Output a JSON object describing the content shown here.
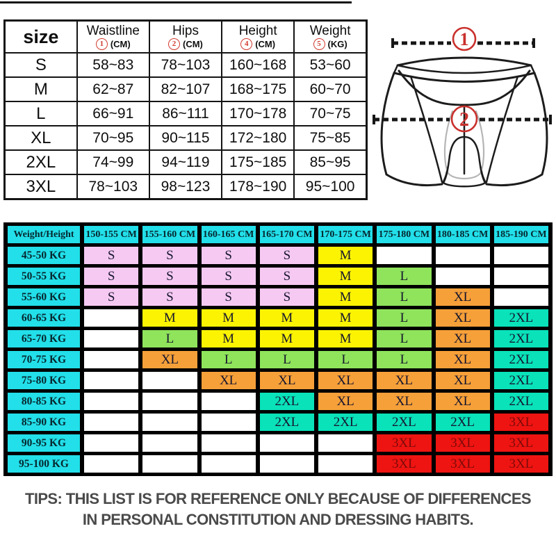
{
  "colors": {
    "accent_red": "#c9302c",
    "header_cyan": "#22dfe9",
    "blank_cell": "#ffffff",
    "default_cell_text": "#15152e"
  },
  "size_table": {
    "title_header": "size",
    "columns": [
      {
        "label": "Waistline",
        "marker": "1",
        "unit": "(CM)"
      },
      {
        "label": "Hips",
        "marker": "2",
        "unit": "(CM)"
      },
      {
        "label": "Height",
        "marker": "4",
        "unit": "(CM)"
      },
      {
        "label": "Weight",
        "marker": "5",
        "unit": "(KG)"
      }
    ],
    "rows": [
      {
        "size": "S",
        "values": [
          "58~83",
          "78~103",
          "160~168",
          "53~60"
        ]
      },
      {
        "size": "M",
        "values": [
          "62~87",
          "82~107",
          "168~175",
          "60~70"
        ]
      },
      {
        "size": "L",
        "values": [
          "66~91",
          "86~111",
          "170~178",
          "70~75"
        ]
      },
      {
        "size": "XL",
        "values": [
          "70~95",
          "90~115",
          "172~180",
          "75~85"
        ]
      },
      {
        "size": "2XL",
        "values": [
          "74~99",
          "94~119",
          "175~185",
          "85~95"
        ]
      },
      {
        "size": "3XL",
        "values": [
          "78~103",
          "98~123",
          "178~190",
          "95~100"
        ]
      }
    ]
  },
  "diagram": {
    "waist_marker": "1",
    "hip_marker": "2"
  },
  "matrix_table": {
    "corner_header": "Weight/Height",
    "height_headers": [
      "150-155 CM",
      "155-160 CM",
      "160-165 CM",
      "165-170 CM",
      "170-175 CM",
      "175-180 CM",
      "180-185 CM",
      "185-190 CM"
    ],
    "rows": [
      {
        "label": "45-50 KG",
        "cells": [
          "S",
          "S",
          "S",
          "S",
          "M",
          "",
          "",
          ""
        ]
      },
      {
        "label": "50-55 KG",
        "cells": [
          "S",
          "S",
          "S",
          "S",
          "M",
          "L",
          "",
          ""
        ]
      },
      {
        "label": "55-60 KG",
        "cells": [
          "S",
          "S",
          "S",
          "S",
          "M",
          "L",
          "XL",
          ""
        ]
      },
      {
        "label": "60-65 KG",
        "cells": [
          "",
          "M",
          "M",
          "M",
          "M",
          "L",
          "XL",
          "2XL"
        ]
      },
      {
        "label": "65-70 KG",
        "cells": [
          "",
          "L",
          "M",
          "M",
          "M",
          "L",
          "XL",
          "2XL"
        ]
      },
      {
        "label": "70-75 KG",
        "cells": [
          "",
          "XL",
          "L",
          "L",
          "L",
          "L",
          "XL",
          "2XL"
        ]
      },
      {
        "label": "75-80 KG",
        "cells": [
          "",
          "",
          "XL",
          "XL",
          "XL",
          "XL",
          "XL",
          "2XL"
        ]
      },
      {
        "label": "80-85 KG",
        "cells": [
          "",
          "",
          "",
          "2XL",
          "XL",
          "XL",
          "XL",
          "2XL"
        ]
      },
      {
        "label": "85-90 KG",
        "cells": [
          "",
          "",
          "",
          "2XL",
          "2XL",
          "2XL",
          "2XL",
          "3XL"
        ]
      },
      {
        "label": "90-95 KG",
        "cells": [
          "",
          "",
          "",
          "",
          "",
          "3XL",
          "3XL",
          "3XL"
        ]
      },
      {
        "label": "95-100 KG",
        "cells": [
          "",
          "",
          "",
          "",
          "",
          "3XL",
          "3XL",
          "3XL"
        ]
      }
    ],
    "size_fill_colors": {
      "S": "#f6c9f2",
      "M": "#fcf303",
      "L": "#8fe45b",
      "XL": "#f6a039",
      "2XL": "#0ae2b9",
      "3XL": "#ee1411"
    },
    "size_text_colors": {
      "3XL": "#7c0a0a"
    }
  },
  "tips": {
    "line1": "TIPS: THIS LIST IS FOR REFERENCE ONLY BECAUSE OF DIFFERENCES",
    "line2": "IN PERSONAL CONSTITUTION AND DRESSING HABITS."
  }
}
